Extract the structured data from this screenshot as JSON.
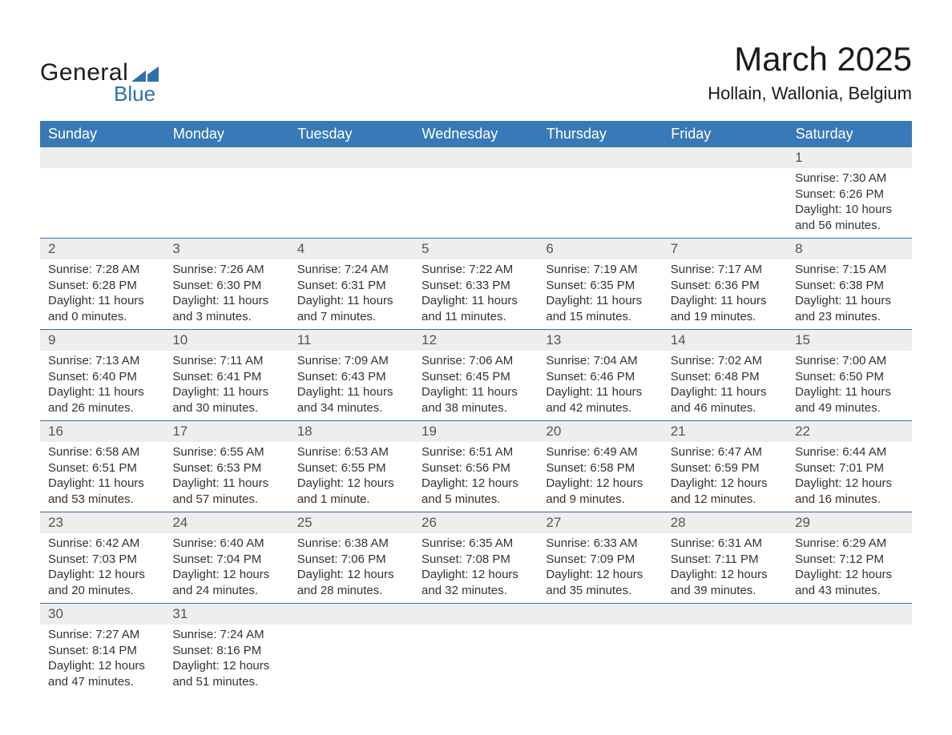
{
  "logo": {
    "general": "General",
    "blue": "Blue",
    "accent_color": "#2f6fb0"
  },
  "title": "March 2025",
  "location": "Hollain, Wallonia, Belgium",
  "colors": {
    "header_bg": "#3a79b7",
    "header_text": "#ffffff",
    "daynum_bg": "#eeeeee",
    "row_border": "#2f6fb0",
    "body_text": "#333333",
    "page_bg": "#ffffff"
  },
  "daysOfWeek": [
    "Sunday",
    "Monday",
    "Tuesday",
    "Wednesday",
    "Thursday",
    "Friday",
    "Saturday"
  ],
  "weeks": [
    [
      null,
      null,
      null,
      null,
      null,
      null,
      {
        "n": "1",
        "sunrise": "7:30 AM",
        "sunset": "6:26 PM",
        "daylight": "10 hours and 56 minutes."
      }
    ],
    [
      {
        "n": "2",
        "sunrise": "7:28 AM",
        "sunset": "6:28 PM",
        "daylight": "11 hours and 0 minutes."
      },
      {
        "n": "3",
        "sunrise": "7:26 AM",
        "sunset": "6:30 PM",
        "daylight": "11 hours and 3 minutes."
      },
      {
        "n": "4",
        "sunrise": "7:24 AM",
        "sunset": "6:31 PM",
        "daylight": "11 hours and 7 minutes."
      },
      {
        "n": "5",
        "sunrise": "7:22 AM",
        "sunset": "6:33 PM",
        "daylight": "11 hours and 11 minutes."
      },
      {
        "n": "6",
        "sunrise": "7:19 AM",
        "sunset": "6:35 PM",
        "daylight": "11 hours and 15 minutes."
      },
      {
        "n": "7",
        "sunrise": "7:17 AM",
        "sunset": "6:36 PM",
        "daylight": "11 hours and 19 minutes."
      },
      {
        "n": "8",
        "sunrise": "7:15 AM",
        "sunset": "6:38 PM",
        "daylight": "11 hours and 23 minutes."
      }
    ],
    [
      {
        "n": "9",
        "sunrise": "7:13 AM",
        "sunset": "6:40 PM",
        "daylight": "11 hours and 26 minutes."
      },
      {
        "n": "10",
        "sunrise": "7:11 AM",
        "sunset": "6:41 PM",
        "daylight": "11 hours and 30 minutes."
      },
      {
        "n": "11",
        "sunrise": "7:09 AM",
        "sunset": "6:43 PM",
        "daylight": "11 hours and 34 minutes."
      },
      {
        "n": "12",
        "sunrise": "7:06 AM",
        "sunset": "6:45 PM",
        "daylight": "11 hours and 38 minutes."
      },
      {
        "n": "13",
        "sunrise": "7:04 AM",
        "sunset": "6:46 PM",
        "daylight": "11 hours and 42 minutes."
      },
      {
        "n": "14",
        "sunrise": "7:02 AM",
        "sunset": "6:48 PM",
        "daylight": "11 hours and 46 minutes."
      },
      {
        "n": "15",
        "sunrise": "7:00 AM",
        "sunset": "6:50 PM",
        "daylight": "11 hours and 49 minutes."
      }
    ],
    [
      {
        "n": "16",
        "sunrise": "6:58 AM",
        "sunset": "6:51 PM",
        "daylight": "11 hours and 53 minutes."
      },
      {
        "n": "17",
        "sunrise": "6:55 AM",
        "sunset": "6:53 PM",
        "daylight": "11 hours and 57 minutes."
      },
      {
        "n": "18",
        "sunrise": "6:53 AM",
        "sunset": "6:55 PM",
        "daylight": "12 hours and 1 minute."
      },
      {
        "n": "19",
        "sunrise": "6:51 AM",
        "sunset": "6:56 PM",
        "daylight": "12 hours and 5 minutes."
      },
      {
        "n": "20",
        "sunrise": "6:49 AM",
        "sunset": "6:58 PM",
        "daylight": "12 hours and 9 minutes."
      },
      {
        "n": "21",
        "sunrise": "6:47 AM",
        "sunset": "6:59 PM",
        "daylight": "12 hours and 12 minutes."
      },
      {
        "n": "22",
        "sunrise": "6:44 AM",
        "sunset": "7:01 PM",
        "daylight": "12 hours and 16 minutes."
      }
    ],
    [
      {
        "n": "23",
        "sunrise": "6:42 AM",
        "sunset": "7:03 PM",
        "daylight": "12 hours and 20 minutes."
      },
      {
        "n": "24",
        "sunrise": "6:40 AM",
        "sunset": "7:04 PM",
        "daylight": "12 hours and 24 minutes."
      },
      {
        "n": "25",
        "sunrise": "6:38 AM",
        "sunset": "7:06 PM",
        "daylight": "12 hours and 28 minutes."
      },
      {
        "n": "26",
        "sunrise": "6:35 AM",
        "sunset": "7:08 PM",
        "daylight": "12 hours and 32 minutes."
      },
      {
        "n": "27",
        "sunrise": "6:33 AM",
        "sunset": "7:09 PM",
        "daylight": "12 hours and 35 minutes."
      },
      {
        "n": "28",
        "sunrise": "6:31 AM",
        "sunset": "7:11 PM",
        "daylight": "12 hours and 39 minutes."
      },
      {
        "n": "29",
        "sunrise": "6:29 AM",
        "sunset": "7:12 PM",
        "daylight": "12 hours and 43 minutes."
      }
    ],
    [
      {
        "n": "30",
        "sunrise": "7:27 AM",
        "sunset": "8:14 PM",
        "daylight": "12 hours and 47 minutes."
      },
      {
        "n": "31",
        "sunrise": "7:24 AM",
        "sunset": "8:16 PM",
        "daylight": "12 hours and 51 minutes."
      },
      null,
      null,
      null,
      null,
      null
    ]
  ],
  "labels": {
    "sunrise": "Sunrise: ",
    "sunset": "Sunset: ",
    "daylight": "Daylight: "
  }
}
